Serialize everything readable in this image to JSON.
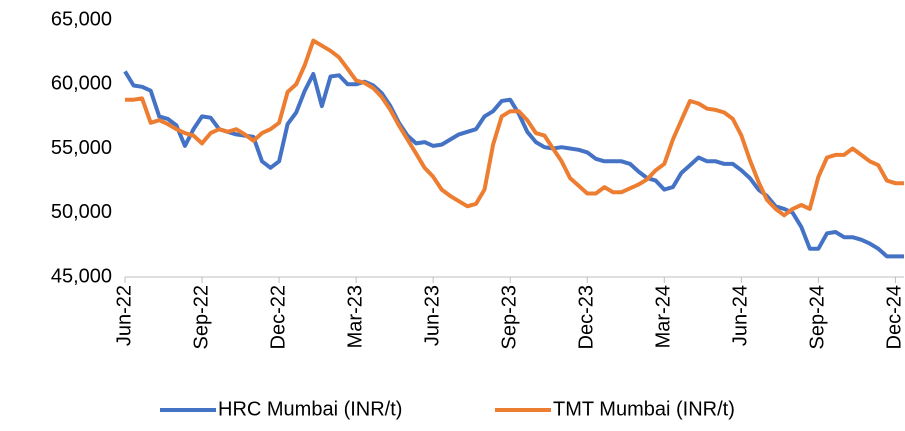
{
  "chart_data": {
    "type": "line",
    "categories": [
      "Jun-22",
      null,
      null,
      null,
      null,
      null,
      null,
      null,
      null,
      "Sep-22",
      null,
      null,
      null,
      null,
      null,
      null,
      null,
      null,
      "Dec-22",
      null,
      null,
      null,
      null,
      null,
      null,
      null,
      null,
      "Mar-23",
      null,
      null,
      null,
      null,
      null,
      null,
      null,
      null,
      "Jun-23",
      null,
      null,
      null,
      null,
      null,
      null,
      null,
      null,
      "Sep-23",
      null,
      null,
      null,
      null,
      null,
      null,
      null,
      null,
      "Dec-23",
      null,
      null,
      null,
      null,
      null,
      null,
      null,
      null,
      "Mar-24",
      null,
      null,
      null,
      null,
      null,
      null,
      null,
      null,
      "Jun-24",
      null,
      null,
      null,
      null,
      null,
      null,
      null,
      null,
      "Sep-24",
      null,
      null,
      null,
      null,
      null,
      null,
      null,
      null,
      "Dec-24",
      null
    ],
    "series": [
      {
        "name": "HRC Mumbai (INR/t)",
        "color": "#4472c4",
        "values": [
          61000,
          59900,
          59800,
          59500,
          57500,
          57300,
          56800,
          55200,
          56500,
          57500,
          57400,
          56500,
          56300,
          56100,
          56000,
          55900,
          54000,
          53500,
          54000,
          56900,
          57800,
          59500,
          60800,
          58300,
          60600,
          60700,
          60000,
          60000,
          60200,
          59900,
          59300,
          58300,
          57000,
          56000,
          55400,
          55500,
          55200,
          55300,
          55700,
          56100,
          56300,
          56500,
          57500,
          57900,
          58700,
          58800,
          57700,
          56300,
          55500,
          55100,
          55000,
          55100,
          55000,
          54900,
          54700,
          54200,
          54000,
          54000,
          54000,
          53800,
          53200,
          52700,
          52500,
          51800,
          52000,
          53100,
          53700,
          54300,
          54000,
          54000,
          53800,
          53800,
          53300,
          52700,
          51800,
          51300,
          50500,
          50300,
          50000,
          48900,
          47200,
          47200,
          48400,
          48500,
          48100,
          48100,
          47900,
          47600,
          47200,
          46600,
          46600,
          46600
        ]
      },
      {
        "name": "TMT Mumbai (INR/t)",
        "color": "#ed7d31",
        "values": [
          58800,
          58800,
          58900,
          57000,
          57200,
          56900,
          56500,
          56200,
          56000,
          55400,
          56200,
          56500,
          56300,
          56500,
          56100,
          55600,
          56200,
          56500,
          57000,
          59400,
          60000,
          61500,
          63400,
          63000,
          62600,
          62100,
          61200,
          60300,
          60100,
          59700,
          59000,
          58000,
          56800,
          55700,
          54600,
          53500,
          52800,
          51800,
          51300,
          50900,
          50500,
          50700,
          51800,
          55300,
          57500,
          57900,
          57900,
          57200,
          56200,
          56000,
          55000,
          54000,
          52700,
          52100,
          51500,
          51500,
          52000,
          51600,
          51600,
          51900,
          52200,
          52600,
          53300,
          53800,
          55700,
          57200,
          58700,
          58500,
          58100,
          58000,
          57800,
          57300,
          56000,
          54100,
          52400,
          51000,
          50300,
          49800,
          50300,
          50600,
          50300,
          52800,
          54300,
          54500,
          54500,
          55000,
          54500,
          54000,
          53700,
          52500,
          52300,
          52300
        ]
      }
    ],
    "ylim": [
      45000,
      65000
    ],
    "yticks": [
      {
        "value": 45000,
        "label": "45,000"
      },
      {
        "value": 50000,
        "label": "50,000"
      },
      {
        "value": 55000,
        "label": "55,000"
      },
      {
        "value": 60000,
        "label": "60,000"
      },
      {
        "value": 65000,
        "label": "65,000"
      }
    ],
    "grid": false,
    "legend": "bottom"
  }
}
